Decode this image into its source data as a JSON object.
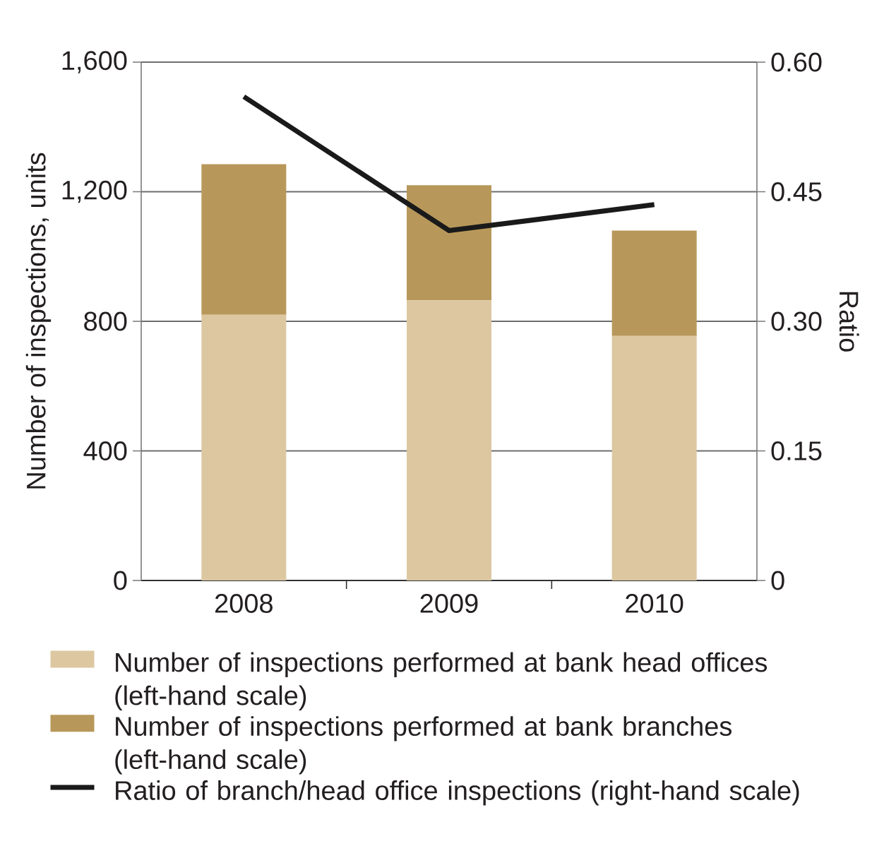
{
  "chart_data": {
    "type": "bar",
    "stacked": true,
    "categories": [
      "2008",
      "2009",
      "2010"
    ],
    "ylabel": "Number of inspections, units",
    "y2label": "Ratio",
    "series": [
      {
        "name": "Number of inspections performed at bank head offices (left-hand scale)",
        "color": "#dcc7a1",
        "values": [
          820,
          865,
          755
        ]
      },
      {
        "name": "Number of inspections performed at bank branches (left-hand scale)",
        "color": "#b8985a",
        "values": [
          465,
          355,
          325
        ]
      },
      {
        "name": "Ratio of branch/head office inspections (right-hand scale)",
        "type": "line",
        "axis": "y2",
        "color": "#1a1a1a",
        "values": [
          0.56,
          0.405,
          0.435
        ]
      }
    ],
    "ylim": [
      0,
      1600
    ],
    "yticks": [
      0,
      400,
      800,
      {
        "value": 1200,
        "label": "1,200"
      },
      {
        "value": 1600,
        "label": "1,600"
      }
    ],
    "y2lim": [
      0,
      0.6
    ],
    "y2ticks": [
      0,
      0.15,
      {
        "value": 0.3,
        "label": "0.30"
      },
      0.45,
      {
        "value": 0.6,
        "label": "0.60"
      }
    ],
    "grid": "y",
    "legend": "bottom",
    "marker": "none",
    "line_style": "solid"
  }
}
